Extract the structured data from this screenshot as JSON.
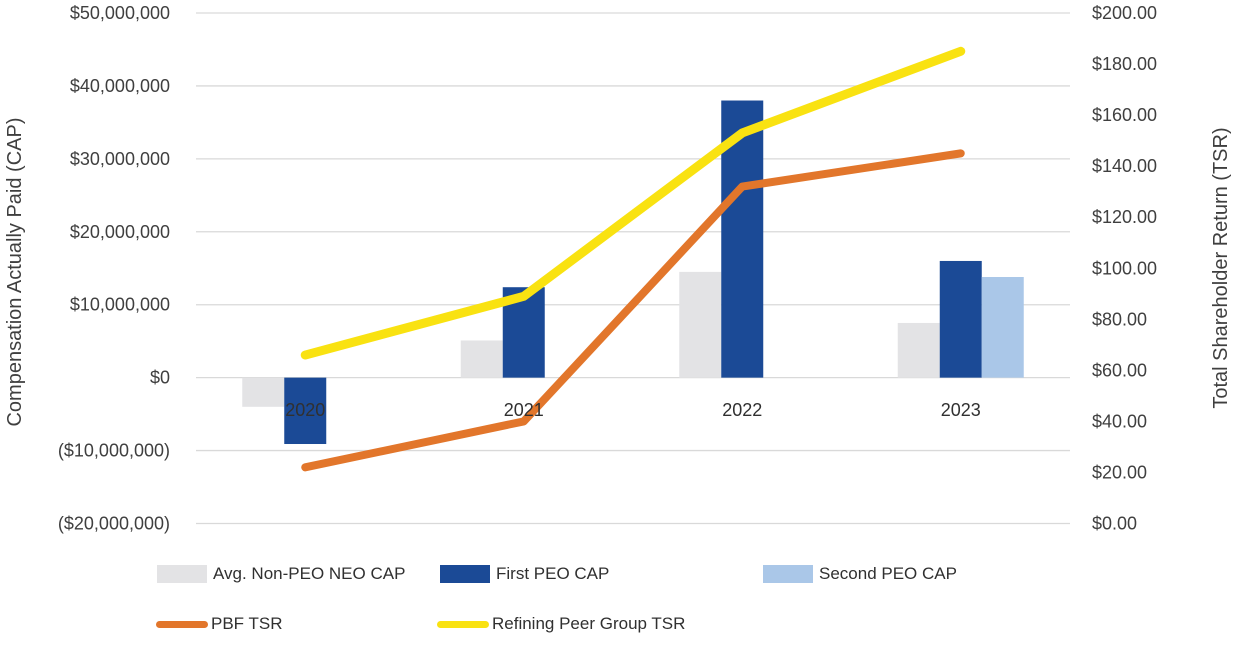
{
  "chart_data": {
    "type": "combo-bar-line",
    "title": "",
    "categories": [
      "2020",
      "2021",
      "2022",
      "2023"
    ],
    "bar_series": [
      {
        "name": "Avg. Non-PEO NEO CAP",
        "color": "#e3e3e5",
        "axis": "left",
        "values_usd": [
          -4000000,
          5100000,
          14500000,
          7500000
        ]
      },
      {
        "name": "First PEO CAP",
        "color": "#1b4a96",
        "axis": "left",
        "values_usd": [
          -9100000,
          12400000,
          38000000,
          16000000
        ]
      },
      {
        "name": "Second PEO CAP",
        "color": "#aac7e8",
        "axis": "left",
        "values_usd": [
          null,
          null,
          null,
          13800000
        ]
      }
    ],
    "line_series": [
      {
        "name": "PBF TSR",
        "color": "#e2762b",
        "axis": "right",
        "values_usd": [
          22,
          40,
          132,
          145
        ]
      },
      {
        "name": "Refining Peer Group TSR",
        "color": "#f9e211",
        "axis": "right",
        "values_usd": [
          66,
          89,
          153,
          185
        ]
      }
    ],
    "left_axis": {
      "title": "Compensation Actually Paid (CAP)",
      "tick_labels": [
        "$50,000,000",
        "$40,000,000",
        "$30,000,000",
        "$20,000,000",
        "$10,000,000",
        "$0",
        "($10,000,000)",
        "($20,000,000)"
      ],
      "tick_values": [
        50000000,
        40000000,
        30000000,
        20000000,
        10000000,
        0,
        -10000000,
        -20000000
      ],
      "min": -20000000,
      "max": 50000000
    },
    "right_axis": {
      "title": "Total Shareholder Return (TSR)",
      "tick_labels": [
        "$200.00",
        "$180.00",
        "$160.00",
        "$140.00",
        "$120.00",
        "$100.00",
        "$80.00",
        "$60.00",
        "$40.00",
        "$20.00",
        "$0.00"
      ],
      "tick_values": [
        200,
        180,
        160,
        140,
        120,
        100,
        80,
        60,
        40,
        20,
        0
      ],
      "min": 0,
      "max": 200
    },
    "grid": true,
    "gridline_color": "#d9d9d9",
    "text_color": "#3f3f3f",
    "legend_position": "bottom-left"
  }
}
